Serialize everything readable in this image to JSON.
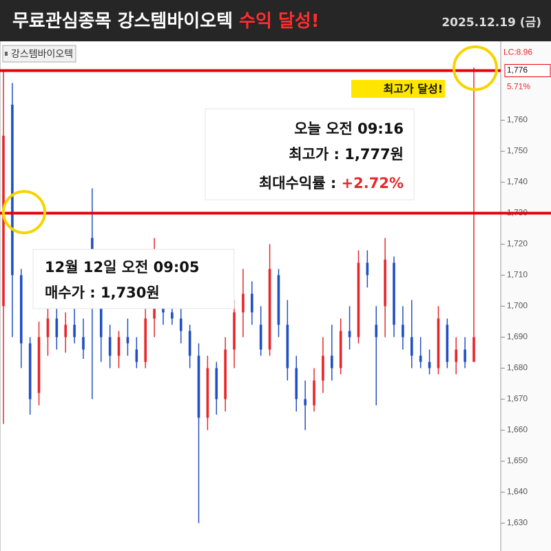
{
  "header": {
    "title": "무료관심종목 강스템바이오텍",
    "title_highlight": "수익 달성!",
    "date": "2025.12.19 (금)"
  },
  "chart_data": {
    "type": "candlestick",
    "symbol": "강스템바이오텍",
    "up_color": "#e8262a",
    "down_color": "#1f4fc4",
    "open": [
      1700,
      1765,
      1710,
      1688,
      1672,
      1690,
      1696,
      1690,
      1694,
      1690,
      1722,
      1700,
      1690,
      1684,
      1690,
      1686,
      1682,
      1696,
      1712,
      1698,
      1696,
      1692,
      1684,
      1664,
      1680,
      1670,
      1686,
      1698,
      1704,
      1694,
      1686,
      1710,
      1694,
      1680,
      1670,
      1668,
      1676,
      1684,
      1680,
      1692,
      1690,
      1714,
      1694,
      1700,
      1714,
      1694,
      1690,
      1684,
      1682,
      1680,
      1694,
      1682,
      1686,
      1682
    ],
    "high": [
      1776,
      1772,
      1712,
      1690,
      1695,
      1700,
      1702,
      1698,
      1700,
      1696,
      1738,
      1705,
      1694,
      1692,
      1696,
      1690,
      1700,
      1722,
      1716,
      1702,
      1700,
      1694,
      1688,
      1684,
      1682,
      1690,
      1702,
      1712,
      1708,
      1700,
      1720,
      1712,
      1702,
      1684,
      1676,
      1680,
      1690,
      1694,
      1696,
      1700,
      1718,
      1718,
      1700,
      1722,
      1716,
      1700,
      1702,
      1690,
      1686,
      1700,
      1696,
      1690,
      1690,
      1777
    ],
    "low": [
      1662,
      1690,
      1680,
      1665,
      1668,
      1684,
      1686,
      1685,
      1688,
      1683,
      1670,
      1682,
      1680,
      1680,
      1684,
      1680,
      1680,
      1690,
      1694,
      1694,
      1688,
      1680,
      1630,
      1660,
      1665,
      1666,
      1680,
      1690,
      1694,
      1684,
      1684,
      1690,
      1676,
      1666,
      1660,
      1666,
      1672,
      1676,
      1678,
      1686,
      1688,
      1706,
      1668,
      1690,
      1690,
      1686,
      1680,
      1680,
      1678,
      1678,
      1680,
      1678,
      1680,
      1682
    ],
    "close": [
      1755,
      1710,
      1688,
      1670,
      1690,
      1696,
      1690,
      1694,
      1690,
      1686,
      1700,
      1690,
      1684,
      1690,
      1688,
      1682,
      1696,
      1714,
      1698,
      1696,
      1692,
      1684,
      1664,
      1680,
      1670,
      1686,
      1698,
      1704,
      1698,
      1686,
      1712,
      1694,
      1680,
      1670,
      1668,
      1676,
      1684,
      1680,
      1692,
      1690,
      1714,
      1710,
      1690,
      1715,
      1694,
      1690,
      1684,
      1682,
      1680,
      1696,
      1682,
      1686,
      1682,
      1690
    ],
    "ylim": [
      1621,
      1785
    ],
    "yticks": [
      {
        "value": 1630,
        "label": "1,630"
      },
      {
        "value": 1640,
        "label": "1,640"
      },
      {
        "value": 1650,
        "label": "1,650"
      },
      {
        "value": 1660,
        "label": "1,660"
      },
      {
        "value": 1670,
        "label": "1,670"
      },
      {
        "value": 1680,
        "label": "1,680"
      },
      {
        "value": 1690,
        "label": "1,690"
      },
      {
        "value": 1700,
        "label": "1,700"
      },
      {
        "value": 1710,
        "label": "1,710"
      },
      {
        "value": 1720,
        "label": "1,720"
      },
      {
        "value": 1730,
        "label": "1,730"
      },
      {
        "value": 1740,
        "label": "1,740"
      },
      {
        "value": 1750,
        "label": "1,750"
      },
      {
        "value": 1760,
        "label": "1,760"
      }
    ],
    "price_labels": {
      "lc": "LC:8.96",
      "last": {
        "value": 1776,
        "label": "1,776"
      },
      "change": "5.71%"
    },
    "reference_lines": [
      1776,
      1730
    ],
    "badge": "최고가 달성!",
    "high_note": {
      "time": "오늘 오전 09:16",
      "price": "최고가 : 1,777원",
      "return_label": "최대수익률 :",
      "return_value": "+2.72%"
    },
    "buy_note": {
      "time": "12월 12일 오전 09:05",
      "price": "매수가 : 1,730원"
    }
  }
}
